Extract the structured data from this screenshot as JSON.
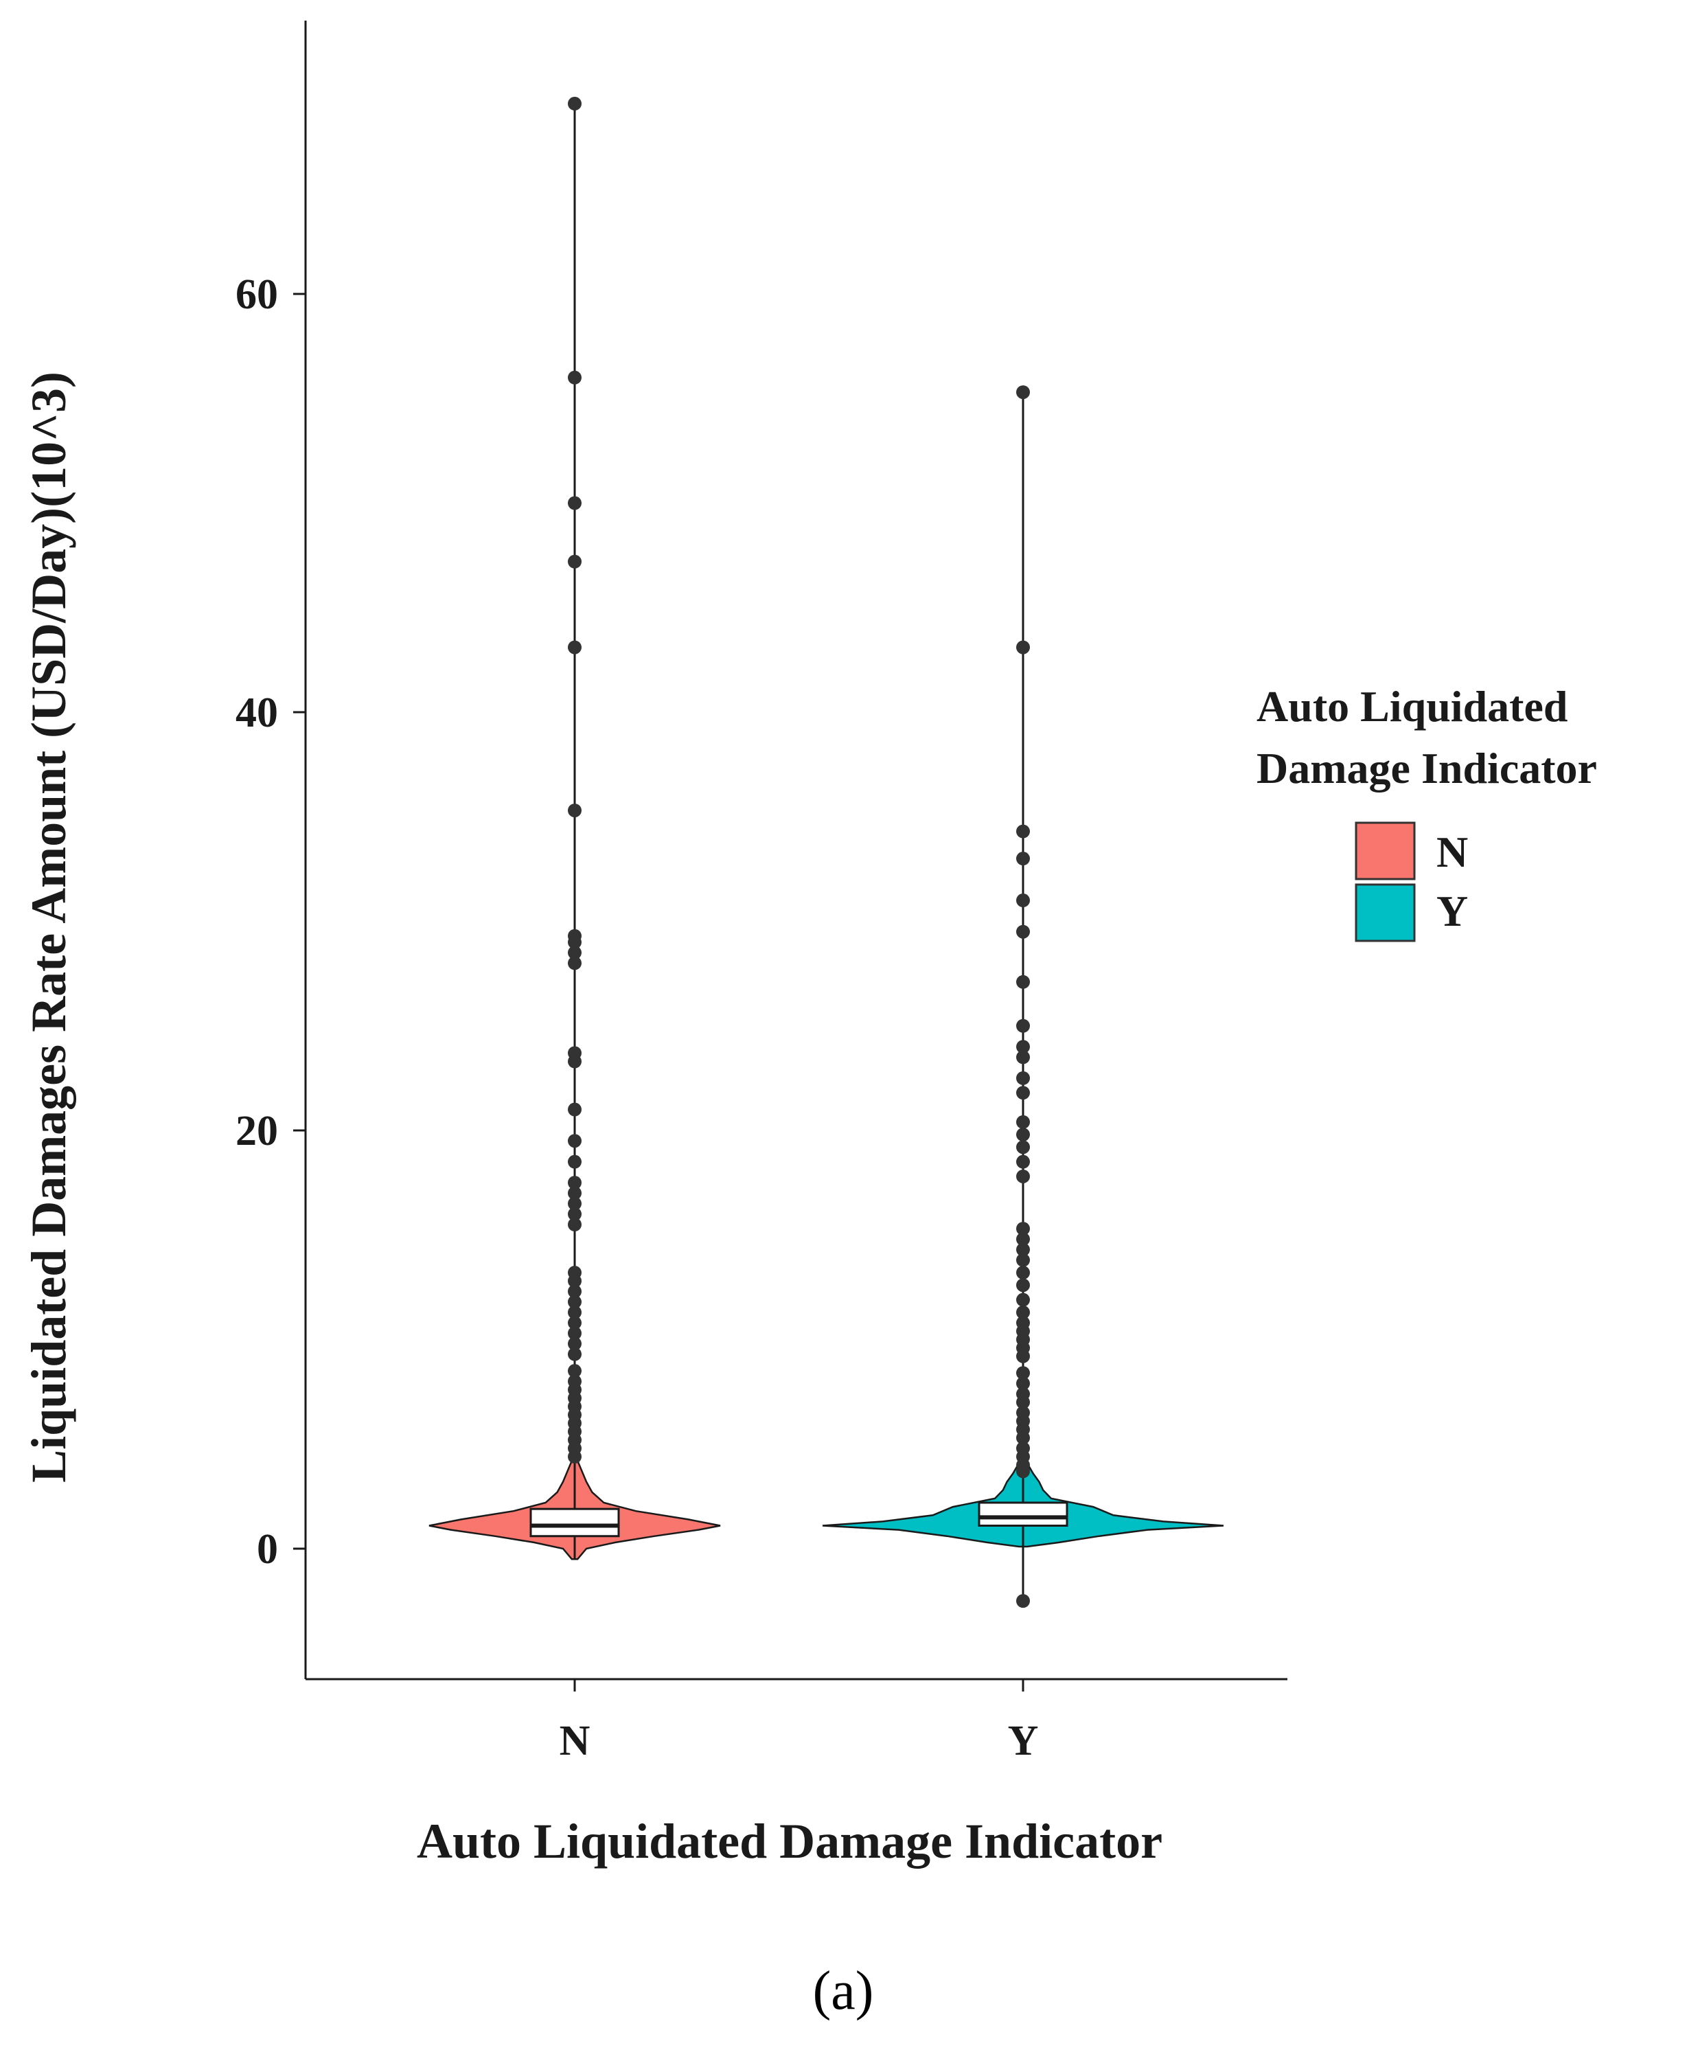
{
  "chart_data": {
    "type": "violin",
    "title": "",
    "xlabel": "Auto Liquidated Damage Indicator",
    "ylabel": "Liquidated Damages Rate Amount (USD/Day)(10^3)",
    "ylim": [
      -5.5,
      74
    ],
    "yticks": [
      0,
      20,
      40,
      60
    ],
    "categories": [
      "N",
      "Y"
    ],
    "legend": {
      "title_line1": "Auto Liquidated",
      "title_line2": "Damage Indicator",
      "position": "right",
      "entries": [
        {
          "label": "N",
          "color": "#F8766D"
        },
        {
          "label": "Y",
          "color": "#00BFC4"
        }
      ]
    },
    "series": [
      {
        "name": "N",
        "color": "#F8766D",
        "box": {
          "q1": 0.6,
          "median": 1.1,
          "q3": 1.9,
          "whisker_low": -0.5,
          "whisker_high": 69.1
        },
        "violin_profile": [
          [
            -0.5,
            0.02
          ],
          [
            0,
            0.08
          ],
          [
            0.3,
            0.28
          ],
          [
            0.6,
            0.55
          ],
          [
            0.9,
            0.85
          ],
          [
            1.1,
            1.0
          ],
          [
            1.4,
            0.78
          ],
          [
            1.8,
            0.42
          ],
          [
            2.2,
            0.2
          ],
          [
            2.7,
            0.12
          ],
          [
            3.2,
            0.08
          ],
          [
            3.7,
            0.05
          ],
          [
            4.2,
            0.02
          ]
        ],
        "outliers": [
          69.1,
          56.0,
          50.0,
          47.2,
          43.1,
          35.3,
          29.3,
          29.0,
          28.5,
          28.0,
          23.7,
          23.3,
          21.0,
          19.5,
          18.5,
          17.5,
          17.0,
          16.5,
          16.0,
          15.5,
          13.2,
          12.8,
          12.3,
          11.8,
          11.3,
          10.8,
          10.3,
          9.8,
          9.3,
          8.5,
          8.0,
          7.6,
          7.2,
          6.8,
          6.4,
          6.0,
          5.6,
          5.2,
          4.8,
          4.4
        ]
      },
      {
        "name": "Y",
        "color": "#00BFC4",
        "box": {
          "q1": 1.1,
          "median": 1.5,
          "q3": 2.2,
          "whisker_low": -2.5,
          "whisker_high": 55.3
        },
        "violin_profile": [
          [
            0.1,
            0.02
          ],
          [
            0.3,
            0.18
          ],
          [
            0.6,
            0.38
          ],
          [
            0.9,
            0.62
          ],
          [
            1.1,
            1.0
          ],
          [
            1.3,
            0.7
          ],
          [
            1.6,
            0.45
          ],
          [
            2.0,
            0.35
          ],
          [
            2.4,
            0.14
          ],
          [
            2.8,
            0.1
          ],
          [
            3.2,
            0.08
          ],
          [
            3.6,
            0.05
          ],
          [
            4.1,
            0.02
          ]
        ],
        "outliers": [
          55.3,
          43.1,
          34.3,
          33.0,
          31.0,
          29.5,
          27.1,
          25.0,
          24.0,
          23.5,
          22.5,
          21.8,
          20.4,
          19.8,
          19.2,
          18.5,
          17.8,
          15.3,
          14.8,
          14.3,
          13.8,
          13.2,
          12.6,
          11.9,
          11.3,
          10.8,
          10.4,
          10.0,
          9.6,
          9.2,
          8.4,
          7.9,
          7.4,
          7.0,
          6.5,
          6.1,
          5.7,
          5.3,
          4.8,
          4.4,
          4.0,
          3.7,
          -2.5
        ]
      }
    ]
  },
  "caption": {
    "open_paren": "(",
    "letter": "a",
    "close_paren": ")"
  }
}
